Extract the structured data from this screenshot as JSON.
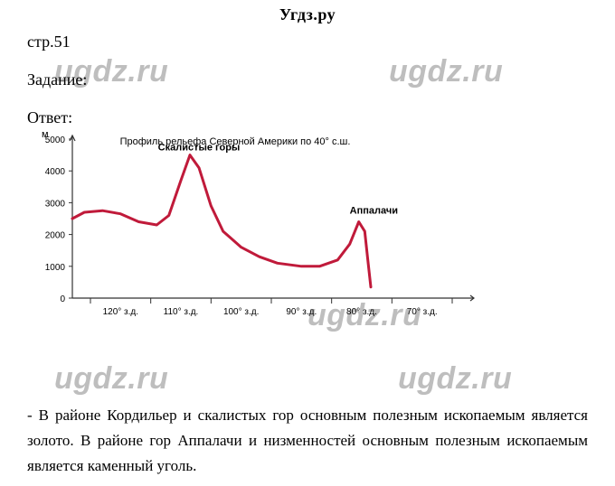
{
  "header": {
    "site": "Угдз.ру"
  },
  "meta": {
    "page_ref": "стр.51",
    "task_label": "Задание:",
    "answer_label": "Ответ:"
  },
  "chart": {
    "type": "line",
    "title": "Профиль рельефа Северной Америки по 40° с.ш.",
    "title_fontsize": 11,
    "y_axis_label": "м",
    "y_axis_label_fontsize": 11,
    "ylim": [
      0,
      5000
    ],
    "ytick_step": 1000,
    "yticks": [
      0,
      1000,
      2000,
      3000,
      4000,
      5000
    ],
    "xlim": [
      128,
      62
    ],
    "xticks": [
      120,
      110,
      100,
      90,
      80,
      70
    ],
    "xtick_labels": [
      "120° з.д.",
      "110° з.д.",
      "100° з.д.",
      "90° з.д.",
      "80° з.д.",
      "70° з.д."
    ],
    "xtick_fontsize": 10,
    "ytick_fontsize": 10,
    "line_color": "#c01a3a",
    "line_width": 3,
    "axis_color": "#323232",
    "tick_color": "#323232",
    "background_color": "#ffffff",
    "data": [
      {
        "lon": 128,
        "elev": 2500
      },
      {
        "lon": 126,
        "elev": 2700
      },
      {
        "lon": 123,
        "elev": 2750
      },
      {
        "lon": 120,
        "elev": 2650
      },
      {
        "lon": 117,
        "elev": 2400
      },
      {
        "lon": 114,
        "elev": 2300
      },
      {
        "lon": 112,
        "elev": 2600
      },
      {
        "lon": 110,
        "elev": 3700
      },
      {
        "lon": 108.5,
        "elev": 4500
      },
      {
        "lon": 107,
        "elev": 4100
      },
      {
        "lon": 105,
        "elev": 2900
      },
      {
        "lon": 103,
        "elev": 2100
      },
      {
        "lon": 100,
        "elev": 1600
      },
      {
        "lon": 97,
        "elev": 1300
      },
      {
        "lon": 94,
        "elev": 1100
      },
      {
        "lon": 90,
        "elev": 1000
      },
      {
        "lon": 87,
        "elev": 1000
      },
      {
        "lon": 84,
        "elev": 1200
      },
      {
        "lon": 82,
        "elev": 1700
      },
      {
        "lon": 80.5,
        "elev": 2400
      },
      {
        "lon": 79.5,
        "elev": 2100
      },
      {
        "lon": 79,
        "elev": 1200
      },
      {
        "lon": 78.5,
        "elev": 350
      }
    ],
    "annotations": [
      {
        "text": "Скалистые горы",
        "lon": 107,
        "elev": 4650,
        "fontweight": "bold",
        "fontsize": 11
      },
      {
        "text": "Аппалачи",
        "lon": 78,
        "elev": 2650,
        "fontweight": "bold",
        "fontsize": 11
      }
    ]
  },
  "watermark_text": "ugdz.ru",
  "body": {
    "paragraph": "- В районе Кордильер и скалистых гор основным полезным ископаемым является золото. В районе гор Аппалачи и низменностей основным полезным ископаемым является каменный уголь."
  }
}
